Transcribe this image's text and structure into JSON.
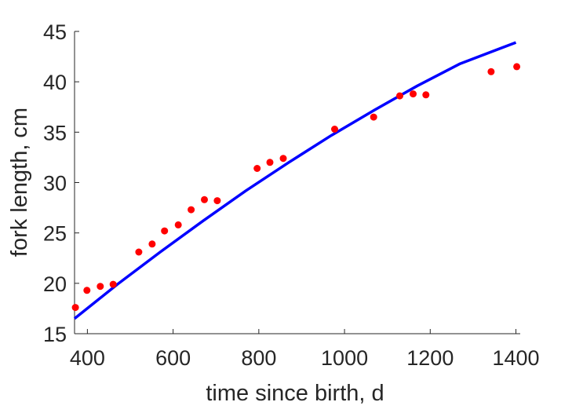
{
  "chart_data": {
    "type": "scatter",
    "title": "",
    "xlabel": "time since birth, d",
    "ylabel": "fork length, cm",
    "xlim": [
      370,
      1410
    ],
    "ylim": [
      15,
      45
    ],
    "xticks": [
      400,
      600,
      800,
      1000,
      1200,
      1400
    ],
    "yticks": [
      15,
      20,
      25,
      30,
      35,
      40,
      45
    ],
    "grid": false,
    "legend": "none",
    "series": [
      {
        "kind": "points",
        "color": "#ff0000",
        "points": [
          [
            372,
            17.6
          ],
          [
            399,
            19.3
          ],
          [
            430,
            19.7
          ],
          [
            460,
            19.9
          ],
          [
            520,
            23.1
          ],
          [
            551,
            23.9
          ],
          [
            580,
            25.2
          ],
          [
            612,
            25.8
          ],
          [
            642,
            27.3
          ],
          [
            673,
            28.3
          ],
          [
            703,
            28.2
          ],
          [
            796,
            31.4
          ],
          [
            826,
            32.0
          ],
          [
            857,
            32.4
          ],
          [
            977,
            35.3
          ],
          [
            1068,
            36.5
          ],
          [
            1129,
            38.6
          ],
          [
            1160,
            38.8
          ],
          [
            1190,
            38.7
          ],
          [
            1342,
            41.0
          ],
          [
            1402,
            41.5
          ]
        ]
      },
      {
        "kind": "curve",
        "color": "#0000ff",
        "points": [
          [
            370,
            16.5
          ],
          [
            470,
            19.9
          ],
          [
            570,
            23.1
          ],
          [
            670,
            26.2
          ],
          [
            770,
            29.2
          ],
          [
            870,
            32.0
          ],
          [
            970,
            34.7
          ],
          [
            1070,
            37.2
          ],
          [
            1170,
            39.6
          ],
          [
            1270,
            41.8
          ],
          [
            1400,
            43.9
          ]
        ]
      }
    ]
  }
}
